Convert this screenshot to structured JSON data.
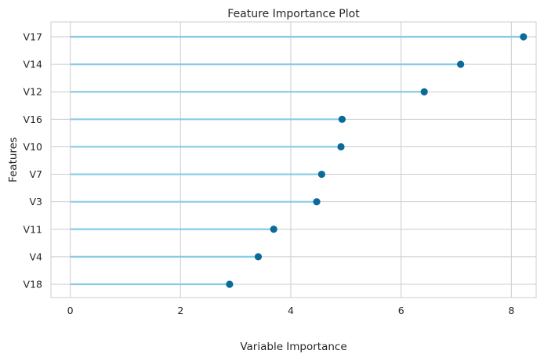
{
  "chart_data": {
    "type": "lollipop",
    "orientation": "horizontal",
    "title": "Feature Importance Plot",
    "xlabel": "Variable Importance",
    "ylabel": "Features",
    "xlim": [
      -0.35,
      8.45
    ],
    "xticks": [
      0,
      2,
      4,
      6,
      8
    ],
    "grid": true,
    "categories": [
      "V17",
      "V14",
      "V12",
      "V16",
      "V10",
      "V7",
      "V3",
      "V11",
      "V4",
      "V18"
    ],
    "values": [
      8.22,
      7.08,
      6.42,
      4.93,
      4.91,
      4.56,
      4.47,
      3.69,
      3.41,
      2.89
    ],
    "colors": {
      "stem": "#89cbe6",
      "marker": "#0a6a9a",
      "grid": "#cccccc",
      "frame": "#cccccc"
    }
  }
}
